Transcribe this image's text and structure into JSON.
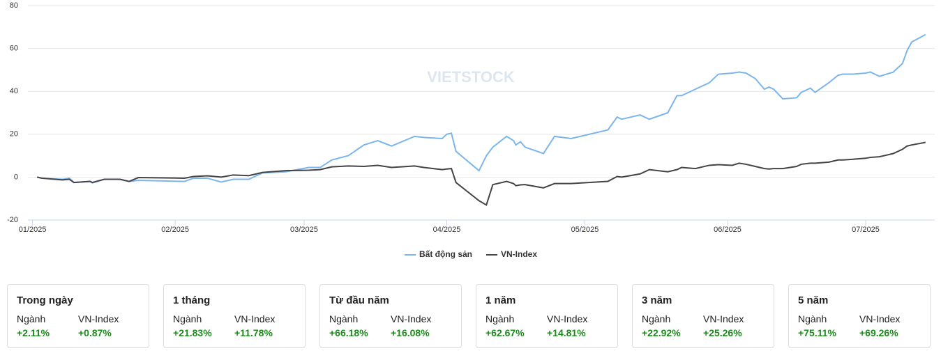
{
  "chart_data": {
    "type": "line",
    "watermark": "VIETSTOCK",
    "x": [
      1,
      2,
      6.5,
      8,
      9,
      12.5,
      13,
      15.6,
      19,
      21,
      23,
      33,
      35,
      38,
      41,
      43.6,
      47,
      50,
      55,
      60,
      62.5,
      65,
      68.6,
      72,
      75,
      78,
      83,
      85,
      89,
      90,
      91,
      92,
      97,
      98.6,
      100,
      103,
      104.5,
      105,
      106,
      107,
      111,
      113.4,
      117,
      125,
      127,
      128,
      132,
      134,
      138,
      140,
      141,
      144,
      147,
      149,
      152,
      153.5,
      155,
      157,
      159,
      160,
      161,
      163,
      166,
      167,
      169,
      170,
      173,
      175,
      176,
      178,
      181,
      182,
      184,
      187,
      189,
      190,
      191,
      194
    ],
    "series": [
      {
        "name": "Bất động sản",
        "color": "#7cb5ec",
        "values": [
          0,
          -0.5,
          -1,
          -0.5,
          -2.5,
          -2,
          -2.7,
          -1,
          -1,
          -2,
          -1.5,
          -2,
          -0.5,
          -0.5,
          -2.3,
          -1,
          -1,
          2,
          2.5,
          4.5,
          4.5,
          8,
          10,
          15,
          17,
          14.5,
          19,
          18.5,
          18,
          20,
          20.5,
          12,
          3,
          10,
          14,
          19,
          17,
          15,
          16.5,
          14,
          11,
          19,
          18,
          22,
          28,
          27,
          29,
          27,
          30,
          38,
          38,
          41,
          44,
          48,
          48.5,
          49,
          48.5,
          46,
          41,
          42,
          41,
          36.5,
          37,
          39.5,
          41.5,
          39.5,
          44,
          47.5,
          48,
          48,
          48.5,
          49,
          47,
          49,
          53,
          59,
          63,
          66.5
        ]
      },
      {
        "name": "VN-Index",
        "color": "#434348",
        "values": [
          0,
          -0.5,
          -1.3,
          -1,
          -2.5,
          -2,
          -2.5,
          -1,
          -1,
          -2,
          -0.2,
          -0.5,
          0.3,
          0.6,
          0,
          1,
          0.7,
          2.2,
          3,
          3.2,
          3.5,
          4.8,
          5.2,
          5,
          5.5,
          4.5,
          5.2,
          4.5,
          3.5,
          3.8,
          4,
          -2.5,
          -11,
          -13,
          -3.5,
          -2,
          -3,
          -4,
          -3.6,
          -3.5,
          -5,
          -3,
          -3,
          -2,
          0.3,
          0,
          1.5,
          3.5,
          2.5,
          3.5,
          4.5,
          4,
          5.5,
          5.8,
          5.5,
          6.5,
          6,
          5,
          4,
          3.8,
          4,
          4,
          5,
          6,
          6.5,
          6.5,
          7,
          8,
          8,
          8.3,
          8.8,
          9.2,
          9.5,
          11,
          13,
          14.5,
          15,
          16.2
        ]
      }
    ],
    "xlim": [
      -1,
      196
    ],
    "xticks": [
      {
        "value": 0,
        "label": "01/2025"
      },
      {
        "value": 31,
        "label": "02/2025"
      },
      {
        "value": 59,
        "label": "03/2025"
      },
      {
        "value": 90,
        "label": "04/2025"
      },
      {
        "value": 120,
        "label": "05/2025"
      },
      {
        "value": 151,
        "label": "06/2025"
      },
      {
        "value": 181,
        "label": "07/2025"
      }
    ],
    "ylim": [
      -20,
      80
    ],
    "yticks": [
      -20,
      0,
      20,
      40,
      60,
      80
    ],
    "grid": true
  },
  "cards": [
    {
      "title": "Trong ngày",
      "sector_label": "Ngành",
      "index_label": "VN-Index",
      "sector_value": "+2.11%",
      "index_value": "+0.87%"
    },
    {
      "title": "1 tháng",
      "sector_label": "Ngành",
      "index_label": "VN-Index",
      "sector_value": "+21.83%",
      "index_value": "+11.78%"
    },
    {
      "title": "Từ đầu năm",
      "sector_label": "Ngành",
      "index_label": "VN-Index",
      "sector_value": "+66.18%",
      "index_value": "+16.08%"
    },
    {
      "title": "1 năm",
      "sector_label": "Ngành",
      "index_label": "VN-Index",
      "sector_value": "+62.67%",
      "index_value": "+14.81%"
    },
    {
      "title": "3 năm",
      "sector_label": "Ngành",
      "index_label": "VN-Index",
      "sector_value": "+22.92%",
      "index_value": "+25.26%"
    },
    {
      "title": "5 năm",
      "sector_label": "Ngành",
      "index_label": "VN-Index",
      "sector_value": "+75.11%",
      "index_value": "+69.26%"
    }
  ]
}
